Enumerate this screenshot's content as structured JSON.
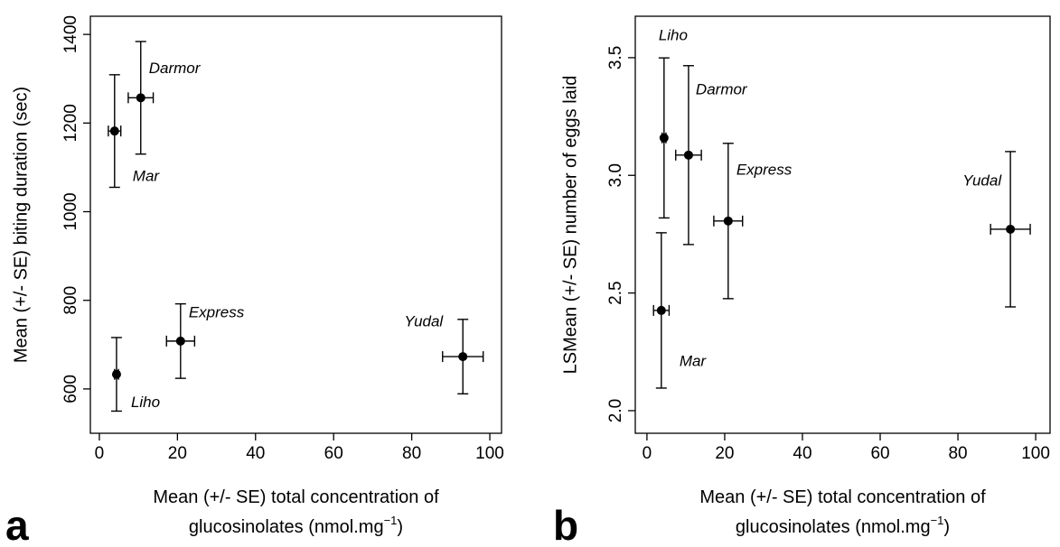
{
  "chart_data": [
    {
      "type": "scatter",
      "panel": "a",
      "x_label": {
        "line1": "Mean (+/- SE) total concentration of",
        "line2": "glucosinolates  (nmol.mg",
        "sup": "−1",
        "end": ")"
      },
      "y_label": "Mean (+/- SE) biting duration (sec)",
      "xlim": [
        -2.3,
        103
      ],
      "ylim": [
        500,
        1441
      ],
      "xticks": [
        0,
        20,
        40,
        60,
        80,
        100
      ],
      "yticks": [
        600,
        800,
        1000,
        1200,
        1400
      ],
      "color": "#000000",
      "points": [
        {
          "name": "Darmor",
          "x": 10.6,
          "y": 1257,
          "xerr": 3.2,
          "yerr": 127
        },
        {
          "name": "Mar",
          "x": 3.9,
          "y": 1182,
          "xerr": 1.6,
          "yerr": 127
        },
        {
          "name": "Liho",
          "x": 4.4,
          "y": 633,
          "xerr": 0.5,
          "yerr": 83
        },
        {
          "name": "Express",
          "x": 20.8,
          "y": 708,
          "xerr": 3.6,
          "yerr": 84
        },
        {
          "name": "Yudal",
          "x": 93.1,
          "y": 673,
          "xerr": 5.2,
          "yerr": 84
        }
      ]
    },
    {
      "type": "scatter",
      "panel": "b",
      "x_label": {
        "line1": "Mean (+/- SE) total concentration of",
        "line2": "glucosinolates  (nmol.mg",
        "sup": "−1",
        "end": ")"
      },
      "y_label": "LSMean (+/- SE) number of eggs laid",
      "xlim": [
        -3.0,
        103.7
      ],
      "ylim": [
        1.904,
        3.676
      ],
      "xticks": [
        0,
        20,
        40,
        60,
        80,
        100
      ],
      "yticks": [
        {
          "value": 2,
          "label": "2.0"
        },
        2.5,
        {
          "value": 3,
          "label": "3.0"
        },
        3.5
      ],
      "color": "#000000",
      "points": [
        {
          "name": "Darmor",
          "x": 10.7,
          "y": 3.086,
          "xerr": 3.3,
          "yerr": 0.38
        },
        {
          "name": "Mar",
          "x": 3.7,
          "y": 2.426,
          "xerr": 2.0,
          "yerr": 0.33
        },
        {
          "name": "Liho",
          "x": 4.4,
          "y": 3.159,
          "xerr": 0.5,
          "yerr": 0.34
        },
        {
          "name": "Express",
          "x": 20.9,
          "y": 2.806,
          "xerr": 3.7,
          "yerr": 0.33
        },
        {
          "name": "Yudal",
          "x": 93.5,
          "y": 2.771,
          "xerr": 5.1,
          "yerr": 0.33
        }
      ]
    }
  ]
}
